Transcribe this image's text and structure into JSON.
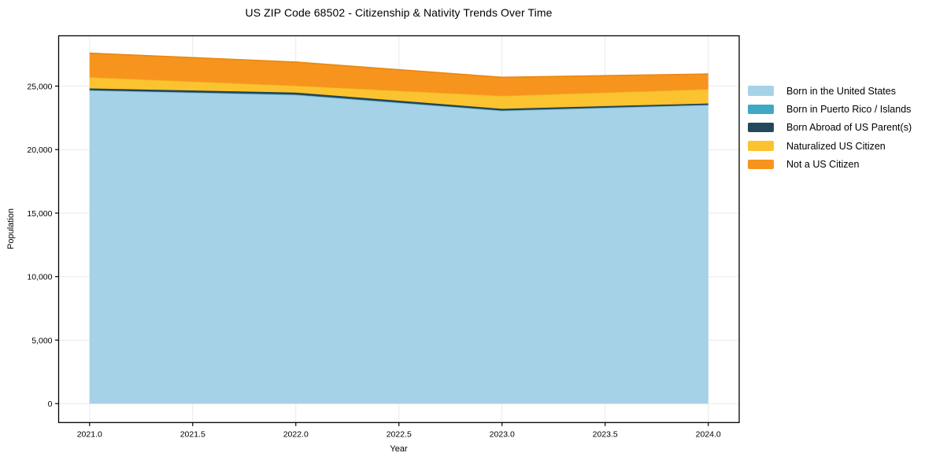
{
  "title": "US ZIP Code 68502 - Citizenship & Nativity Trends Over Time",
  "chart_data": {
    "type": "area",
    "stacked": true,
    "title": "US ZIP Code 68502 - Citizenship & Nativity Trends Over Time",
    "xlabel": "Year",
    "ylabel": "Population",
    "x": [
      2021,
      2022,
      2023,
      2024
    ],
    "series": [
      {
        "name": "Born in the United States",
        "color": "#a5d2e7",
        "edge": "#8fc2da",
        "values": [
          24650,
          24300,
          23050,
          23500
        ]
      },
      {
        "name": "Born in Puerto Rico / Islands",
        "color": "#3ea8c6",
        "edge": null,
        "values": [
          20,
          20,
          20,
          20
        ]
      },
      {
        "name": "Born Abroad of US Parent(s)",
        "color": "#23485c",
        "edge": "#1d3d4e",
        "values": [
          140,
          170,
          140,
          110
        ]
      },
      {
        "name": "Naturalized US Citizen",
        "color": "#fcc330",
        "edge": "#eeaa1c",
        "values": [
          900,
          550,
          1030,
          1140
        ]
      },
      {
        "name": "Not a US Citizen",
        "color": "#f7941e",
        "edge": "#e98810",
        "values": [
          1880,
          1850,
          1450,
          1180
        ]
      }
    ],
    "totals": [
      27590,
      26890,
      25690,
      25950
    ],
    "xticks": {
      "values": [
        2021.0,
        2021.5,
        2022.0,
        2022.5,
        2023.0,
        2023.5,
        2024.0
      ],
      "labels": [
        "2021.0",
        "2021.5",
        "2022.0",
        "2022.5",
        "2023.0",
        "2023.5",
        "2024.0"
      ]
    },
    "yticks": {
      "values": [
        0,
        5000,
        10000,
        15000,
        20000,
        25000
      ],
      "labels": [
        "0",
        "5,000",
        "10,000",
        "15,000",
        "20,000",
        "25,000"
      ]
    },
    "xlim": [
      2020.85,
      2024.15
    ],
    "ylim": [
      -1490,
      28960
    ],
    "grid": true,
    "grid_color": "#e9e9e9",
    "spine_color": "#000000",
    "legend_position": "right"
  }
}
